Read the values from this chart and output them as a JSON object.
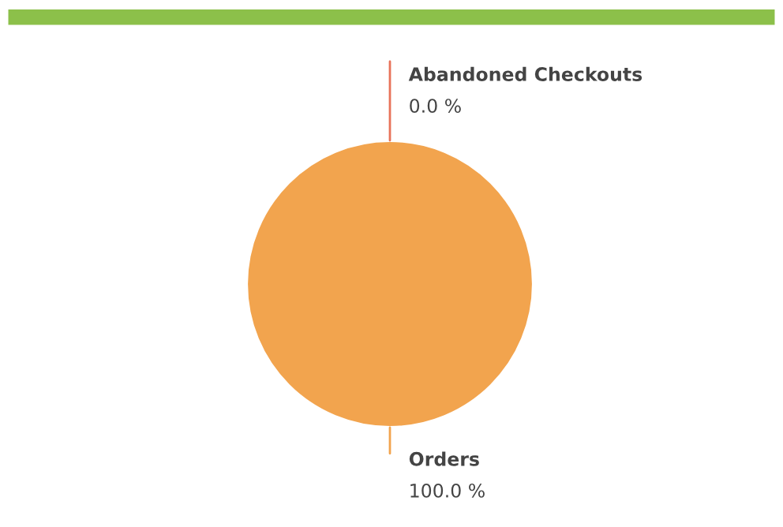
{
  "chart_data": {
    "type": "pie",
    "categories": [
      "Abandoned Checkouts",
      "Orders"
    ],
    "values": [
      0,
      100
    ],
    "value_labels": [
      "0.0 %",
      "100.0 %"
    ],
    "colors": [
      "#e8735a",
      "#f2a44e"
    ],
    "legend": false
  }
}
